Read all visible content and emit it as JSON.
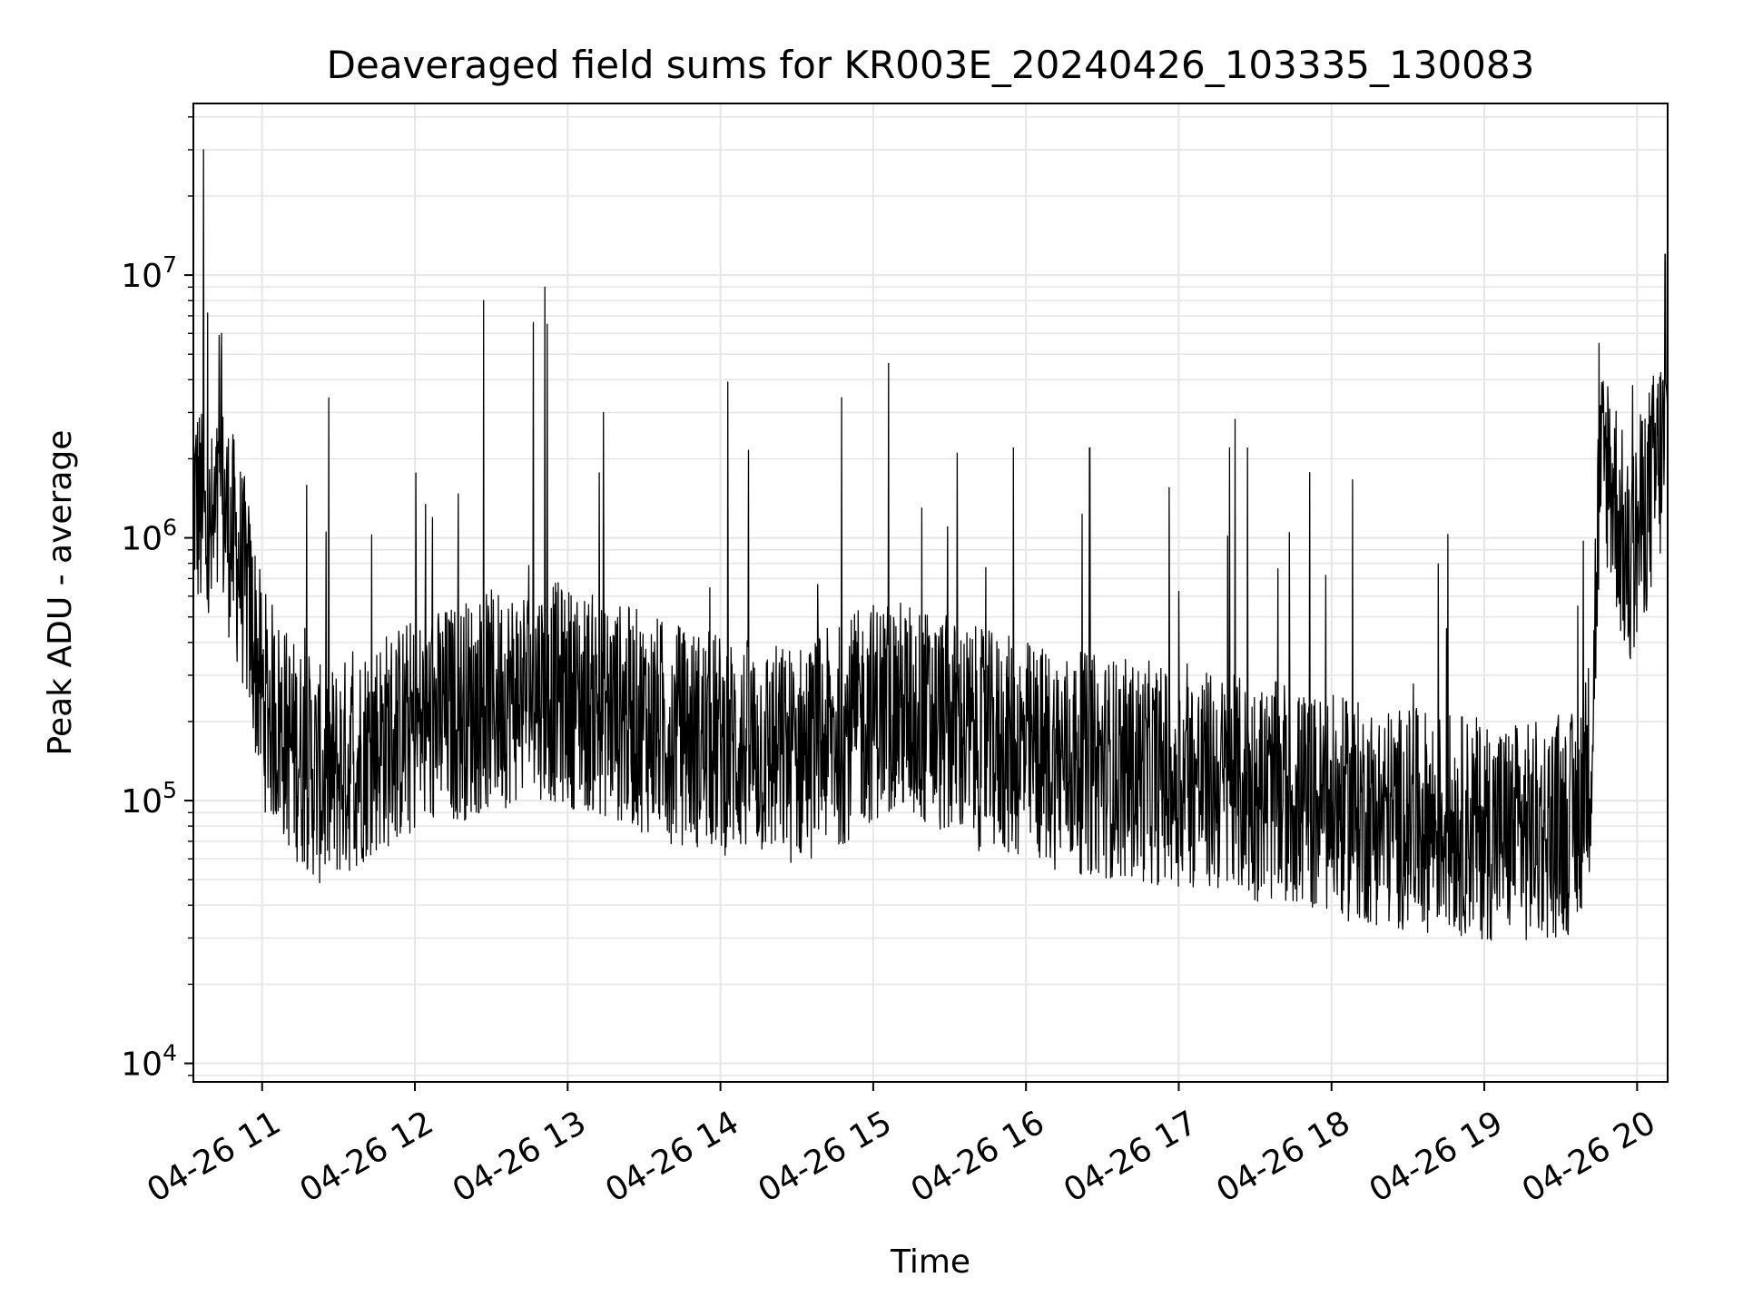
{
  "chart_data": {
    "type": "line",
    "title": "Deaveraged field sums for KR003E_20240426_103335_130083",
    "xlabel": "Time",
    "ylabel": "Peak ADU - average",
    "yscale": "log",
    "ylim": [
      8500,
      45000000
    ],
    "xlim": [
      "04-26 10:33",
      "04-26 20:12"
    ],
    "grid": true,
    "line_color": "#000000",
    "grid_color": "#e6e6e6",
    "x_ticks": [
      {
        "label": "04-26 11",
        "value": "04-26 11:00"
      },
      {
        "label": "04-26 12",
        "value": "04-26 12:00"
      },
      {
        "label": "04-26 13",
        "value": "04-26 13:00"
      },
      {
        "label": "04-26 14",
        "value": "04-26 14:00"
      },
      {
        "label": "04-26 15",
        "value": "04-26 15:00"
      },
      {
        "label": "04-26 16",
        "value": "04-26 16:00"
      },
      {
        "label": "04-26 17",
        "value": "04-26 17:00"
      },
      {
        "label": "04-26 18",
        "value": "04-26 18:00"
      },
      {
        "label": "04-26 19",
        "value": "04-26 19:00"
      },
      {
        "label": "04-26 20",
        "value": "04-26 20:00"
      }
    ],
    "y_ticks": [
      {
        "base": "10",
        "exp": "4",
        "value": 10000
      },
      {
        "base": "10",
        "exp": "5",
        "value": 100000
      },
      {
        "base": "10",
        "exp": "6",
        "value": 1000000
      },
      {
        "base": "10",
        "exp": "7",
        "value": 10000000
      }
    ],
    "series": [
      {
        "x": [
          "04-26 10:33",
          "04-26 10:36",
          "04-26 10:39",
          "04-26 10:42",
          "04-26 10:45",
          "04-26 10:48",
          "04-26 10:51",
          "04-26 10:54",
          "04-26 10:57",
          "04-26 11:00",
          "04-26 11:06",
          "04-26 11:12",
          "04-26 11:18",
          "04-26 11:24",
          "04-26 11:30",
          "04-26 11:36",
          "04-26 11:42",
          "04-26 11:48",
          "04-26 11:54",
          "04-26 12:00",
          "04-26 12:06",
          "04-26 12:12",
          "04-26 12:18",
          "04-26 12:24",
          "04-26 12:30",
          "04-26 12:36",
          "04-26 12:42",
          "04-26 12:48",
          "04-26 12:54",
          "04-26 13:00",
          "04-26 13:06",
          "04-26 13:12",
          "04-26 13:18",
          "04-26 13:24",
          "04-26 13:30",
          "04-26 13:36",
          "04-26 13:42",
          "04-26 13:48",
          "04-26 13:54",
          "04-26 14:00",
          "04-26 14:06",
          "04-26 14:12",
          "04-26 14:18",
          "04-26 14:24",
          "04-26 14:30",
          "04-26 14:36",
          "04-26 14:42",
          "04-26 14:48",
          "04-26 14:54",
          "04-26 15:00",
          "04-26 15:06",
          "04-26 15:12",
          "04-26 15:18",
          "04-26 15:24",
          "04-26 15:30",
          "04-26 15:36",
          "04-26 15:42",
          "04-26 15:48",
          "04-26 15:54",
          "04-26 16:00",
          "04-26 16:06",
          "04-26 16:12",
          "04-26 16:18",
          "04-26 16:24",
          "04-26 16:30",
          "04-26 16:36",
          "04-26 16:42",
          "04-26 16:48",
          "04-26 16:54",
          "04-26 17:00",
          "04-26 17:06",
          "04-26 17:12",
          "04-26 17:18",
          "04-26 17:24",
          "04-26 17:30",
          "04-26 17:36",
          "04-26 17:42",
          "04-26 17:48",
          "04-26 17:54",
          "04-26 18:00",
          "04-26 18:06",
          "04-26 18:12",
          "04-26 18:18",
          "04-26 18:24",
          "04-26 18:30",
          "04-26 18:36",
          "04-26 18:42",
          "04-26 18:48",
          "04-26 18:54",
          "04-26 19:00",
          "04-26 19:06",
          "04-26 19:12",
          "04-26 19:18",
          "04-26 19:24",
          "04-26 19:30",
          "04-26 19:36",
          "04-26 19:39",
          "04-26 19:42",
          "04-26 19:45",
          "04-26 19:48",
          "04-26 19:51",
          "04-26 19:54",
          "04-26 19:57",
          "04-26 20:00",
          "04-26 20:03",
          "04-26 20:06",
          "04-26 20:09",
          "04-26 20:12"
        ],
        "y": [
          1500000,
          1200000,
          900000,
          1100000,
          1300000,
          1000000,
          800000,
          600000,
          400000,
          250000,
          200000,
          160000,
          140000,
          120000,
          130000,
          140000,
          160000,
          170000,
          180000,
          190000,
          200000,
          210000,
          220000,
          230000,
          240000,
          250000,
          260000,
          270000,
          260000,
          250000,
          240000,
          230000,
          220000,
          210000,
          200000,
          190000,
          180000,
          175000,
          170000,
          165000,
          160000,
          158000,
          155000,
          150000,
          150000,
          160000,
          170000,
          180000,
          200000,
          220000,
          230000,
          220000,
          210000,
          200000,
          190000,
          180000,
          170000,
          165000,
          160000,
          155000,
          150000,
          145000,
          140000,
          138000,
          135000,
          133000,
          130000,
          128000,
          125000,
          122000,
          120000,
          118000,
          115000,
          112000,
          110000,
          108000,
          105000,
          100000,
          97000,
          95000,
          92000,
          90000,
          88000,
          86000,
          85000,
          84000,
          83000,
          82000,
          80000,
          78000,
          77000,
          76000,
          75000,
          78000,
          80000,
          82000,
          110000,
          150000,
          1500000,
          2000000,
          1500000,
          1000000,
          700000,
          1000000,
          1300000,
          1600000,
          2000000,
          2500000
        ]
      }
    ],
    "spikes": [
      {
        "x": "04-26 10:37",
        "y": 30000000
      },
      {
        "x": "04-26 10:44",
        "y": 6000000
      },
      {
        "x": "04-26 12:27",
        "y": 8000000
      },
      {
        "x": "04-26 12:51",
        "y": 9000000
      },
      {
        "x": "04-26 12:52",
        "y": 6500000
      },
      {
        "x": "04-26 13:14",
        "y": 3000000
      },
      {
        "x": "04-26 15:33",
        "y": 2100000
      },
      {
        "x": "04-26 15:55",
        "y": 2200000
      },
      {
        "x": "04-26 16:25",
        "y": 2200000
      },
      {
        "x": "04-26 17:20",
        "y": 2200000
      },
      {
        "x": "04-26 17:27",
        "y": 2200000
      },
      {
        "x": "04-26 19:45",
        "y": 5500000
      },
      {
        "x": "04-26 20:11",
        "y": 12000000
      }
    ]
  }
}
